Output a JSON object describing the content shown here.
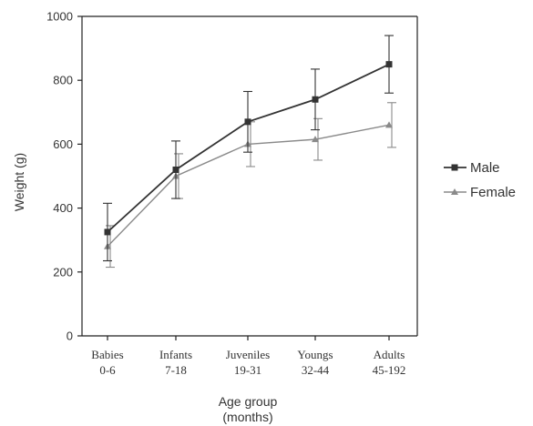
{
  "chart_data": {
    "type": "line",
    "xlabel_lines": [
      "Age group",
      "(months)"
    ],
    "ylabel": "Weight (g)",
    "ylim": [
      0,
      1000
    ],
    "yticks": [
      0,
      200,
      400,
      600,
      800,
      1000
    ],
    "categories": [
      {
        "name": "Babies",
        "range": "0-6"
      },
      {
        "name": "Infants",
        "range": "7-18"
      },
      {
        "name": "Juveniles",
        "range": "19-31"
      },
      {
        "name": "Youngs",
        "range": "32-44"
      },
      {
        "name": "Adults",
        "range": "45-192"
      }
    ],
    "series": [
      {
        "name": "Male",
        "marker": "square",
        "color": "#333333",
        "values": [
          325,
          520,
          670,
          740,
          850
        ],
        "error": [
          90,
          90,
          95,
          95,
          90
        ]
      },
      {
        "name": "Female",
        "marker": "triangle",
        "color": "#8a8a8a",
        "values": [
          280,
          500,
          600,
          615,
          660
        ],
        "error": [
          65,
          70,
          70,
          65,
          70
        ]
      }
    ],
    "grid": false,
    "legend": "right"
  }
}
